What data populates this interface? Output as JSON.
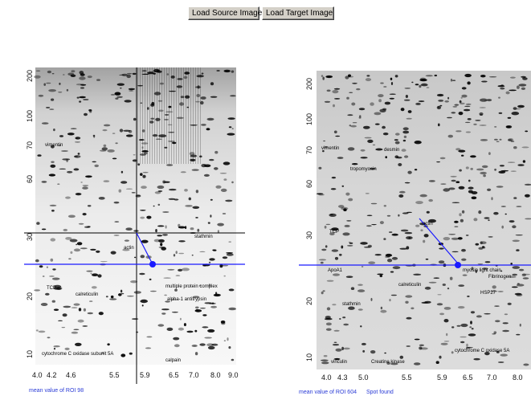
{
  "toolbar": {
    "load_source_label": "Load Source Image",
    "load_target_label": "Load Target Image"
  },
  "source_gel": {
    "y_ticks": [
      "200",
      "100",
      "70",
      "60",
      "30",
      "20",
      "10"
    ],
    "x_ticks": [
      "4.0",
      "4.2",
      "4.6",
      "5.5",
      "5.9",
      "6.5",
      "7.0",
      "8.0",
      "9.0"
    ],
    "status": "mean value of ROI 98",
    "annotations": [
      "vimentin",
      "TCP",
      "calreticulin",
      "multiple protein complex",
      "alpha-1 antitrypsin",
      "cytochrome C oxidase subunit 5A",
      "actin",
      "stathmin",
      "calpain"
    ]
  },
  "target_gel": {
    "y_ticks": [
      "200",
      "100",
      "70",
      "60",
      "30",
      "20",
      "10"
    ],
    "x_ticks": [
      "4.0",
      "4.3",
      "5.0",
      "5.5",
      "5.9",
      "6.5",
      "7.0",
      "8.0"
    ],
    "status": "mean value of ROI 604",
    "status2": "Spot found",
    "annotations": [
      "vimentin",
      "desmin",
      "tropomyosin",
      "actin",
      "calreticulin",
      "myosin light chain",
      "TCP",
      "stathmin",
      "cytochrome C oxidase 5A",
      "HSP27",
      "vinculin",
      "ApoA1",
      "Creatine kinase",
      "Fibrinogen"
    ]
  },
  "colors": {
    "crosshair": "#1a1aff",
    "status": "#2a3bd6",
    "button_face": "#d4d0c8"
  }
}
